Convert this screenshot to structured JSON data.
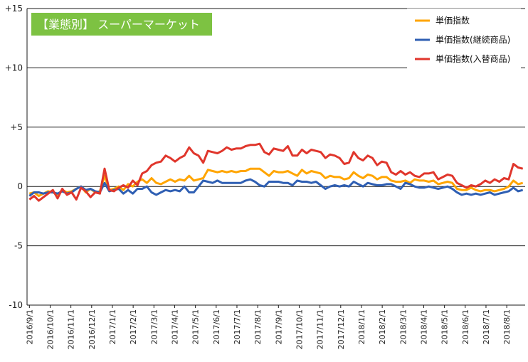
{
  "chart_data": {
    "type": "line",
    "title": "【業態別】 スーパーマーケット",
    "ylim": [
      -10,
      15
    ],
    "yticks": [
      {
        "value": 15,
        "label": "+15"
      },
      {
        "value": 10,
        "label": "+10"
      },
      {
        "value": 5,
        "label": "+5"
      },
      {
        "value": 0,
        "label": "0"
      },
      {
        "value": -5,
        "label": "-5"
      },
      {
        "value": -10,
        "label": "-10"
      }
    ],
    "xticks": [
      "2016/9/1",
      "2016/10/1",
      "2016/11/1",
      "2016/12/1",
      "2017/1/1",
      "2017/2/1",
      "2017/3/1",
      "2017/4/1",
      "2017/5/1",
      "2017/6/1",
      "2017/7/1",
      "2017/8/1",
      "2017/9/1",
      "2017/10/1",
      "2017/11/1",
      "2017/12/1",
      "2018/1/1",
      "2018/2/1",
      "2018/3/1",
      "2018/4/1",
      "2018/5/1",
      "2018/6/1",
      "2018/7/1",
      "2018/8/1"
    ],
    "grid": "horizontal",
    "legend_position": "top-right",
    "series": [
      {
        "name": "単価指数",
        "color": "#FFA500",
        "values": [
          -0.6,
          -0.5,
          -0.8,
          -0.6,
          -0.4,
          -0.5,
          -0.7,
          -0.3,
          -0.5,
          -0.4,
          -0.2,
          0.0,
          -0.5,
          -0.2,
          -0.5,
          -0.4,
          0.9,
          -0.3,
          -0.2,
          0.0,
          -0.3,
          0.2,
          0.0,
          0.4,
          0.6,
          0.3,
          0.7,
          0.3,
          0.2,
          0.4,
          0.6,
          0.4,
          0.6,
          0.5,
          0.9,
          0.5,
          0.6,
          0.7,
          1.4,
          1.3,
          1.2,
          1.3,
          1.2,
          1.3,
          1.2,
          1.3,
          1.3,
          1.5,
          1.5,
          1.5,
          1.2,
          0.9,
          1.3,
          1.2,
          1.2,
          1.3,
          1.1,
          0.9,
          1.4,
          1.1,
          1.3,
          1.2,
          1.1,
          0.7,
          0.9,
          0.8,
          0.8,
          0.6,
          0.7,
          1.2,
          0.9,
          0.7,
          1.0,
          0.9,
          0.6,
          0.8,
          0.8,
          0.5,
          0.4,
          0.4,
          0.5,
          0.3,
          0.6,
          0.5,
          0.5,
          0.4,
          0.5,
          0.2,
          0.3,
          0.4,
          0.3,
          -0.2,
          -0.3,
          -0.3,
          -0.1,
          -0.3,
          -0.4,
          -0.3,
          -0.3,
          -0.4,
          -0.3,
          -0.2,
          0.0,
          0.5,
          0.2,
          0.3
        ]
      },
      {
        "name": "単価指数(継続商品)",
        "color": "#2F5FB3",
        "values": [
          -0.8,
          -0.5,
          -0.5,
          -0.6,
          -0.5,
          -0.5,
          -0.6,
          -0.4,
          -0.6,
          -0.5,
          -0.2,
          0.0,
          -0.3,
          -0.2,
          -0.4,
          -0.5,
          0.3,
          -0.4,
          -0.3,
          -0.2,
          -0.6,
          -0.3,
          -0.6,
          -0.2,
          -0.2,
          0.0,
          -0.5,
          -0.7,
          -0.5,
          -0.3,
          -0.4,
          -0.3,
          -0.4,
          0.0,
          -0.5,
          -0.5,
          0.0,
          0.5,
          0.4,
          0.3,
          0.5,
          0.3,
          0.3,
          0.3,
          0.3,
          0.3,
          0.5,
          0.6,
          0.4,
          0.1,
          0.0,
          0.4,
          0.4,
          0.4,
          0.3,
          0.3,
          0.1,
          0.5,
          0.4,
          0.4,
          0.3,
          0.4,
          0.1,
          -0.2,
          0.0,
          0.1,
          0.0,
          0.1,
          0.0,
          0.4,
          0.2,
          0.0,
          0.3,
          0.2,
          0.1,
          0.1,
          0.2,
          0.2,
          0.0,
          -0.2,
          0.3,
          0.2,
          0.0,
          -0.1,
          -0.1,
          0.0,
          -0.1,
          -0.2,
          -0.1,
          0.0,
          -0.2,
          -0.5,
          -0.7,
          -0.6,
          -0.7,
          -0.6,
          -0.7,
          -0.6,
          -0.5,
          -0.7,
          -0.6,
          -0.5,
          -0.4,
          -0.1,
          -0.4,
          -0.3
        ]
      },
      {
        "name": "単価指数(入替商品)",
        "color": "#E0362C",
        "values": [
          -1.1,
          -0.8,
          -1.2,
          -0.9,
          -0.6,
          -0.3,
          -1.0,
          -0.2,
          -0.7,
          -0.5,
          -1.1,
          -0.1,
          -0.4,
          -0.9,
          -0.5,
          -0.6,
          1.5,
          -0.3,
          -0.4,
          -0.1,
          0.1,
          -0.1,
          0.5,
          0.1,
          1.1,
          1.3,
          1.8,
          2.0,
          2.1,
          2.6,
          2.4,
          2.1,
          2.4,
          2.6,
          3.3,
          2.8,
          2.6,
          2.0,
          3.0,
          2.9,
          2.8,
          3.0,
          3.3,
          3.1,
          3.2,
          3.2,
          3.4,
          3.5,
          3.5,
          3.6,
          2.9,
          2.7,
          3.2,
          3.1,
          3.0,
          3.4,
          2.6,
          2.6,
          3.1,
          2.8,
          3.1,
          3.0,
          2.9,
          2.4,
          2.7,
          2.6,
          2.4,
          1.9,
          2.0,
          2.9,
          2.4,
          2.2,
          2.6,
          2.4,
          1.8,
          2.1,
          2.0,
          1.2,
          1.0,
          1.3,
          1.0,
          1.2,
          0.9,
          0.8,
          1.1,
          1.1,
          1.2,
          0.6,
          0.8,
          1.0,
          0.9,
          0.3,
          0.1,
          -0.1,
          0.1,
          0.0,
          0.2,
          0.5,
          0.3,
          0.6,
          0.4,
          0.7,
          0.6,
          1.9,
          1.6,
          1.5
        ]
      }
    ]
  }
}
